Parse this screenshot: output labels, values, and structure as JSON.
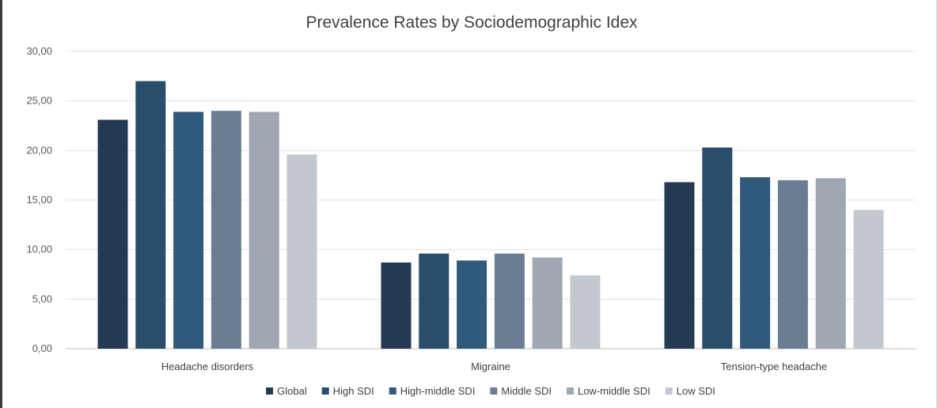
{
  "chart_data": {
    "type": "bar",
    "title": "Prevalence Rates by Sociodemographic Idex",
    "xlabel": "",
    "ylabel": "",
    "ylim": [
      0,
      30
    ],
    "yticks": [
      "0,00",
      "5,00",
      "10,00",
      "15,00",
      "20,00",
      "25,00",
      "30,00"
    ],
    "ytick_values": [
      0,
      5,
      10,
      15,
      20,
      25,
      30
    ],
    "grid": true,
    "legend_position": "bottom",
    "categories": [
      "Headache disorders",
      "Migraine",
      "Tension-type headache"
    ],
    "series": [
      {
        "name": "Global",
        "color": "#233a52",
        "values": [
          23.1,
          8.7,
          16.8
        ]
      },
      {
        "name": "High SDI",
        "color": "#2a4d6c",
        "values": [
          27.0,
          9.6,
          20.3
        ]
      },
      {
        "name": "High-middle SDI",
        "color": "#305a7c",
        "values": [
          23.9,
          8.9,
          17.3
        ]
      },
      {
        "name": "Middle SDI",
        "color": "#6b7d93",
        "values": [
          24.0,
          9.6,
          17.0
        ]
      },
      {
        "name": "Low-middle SDI",
        "color": "#9ea7b2",
        "values": [
          23.9,
          9.2,
          17.2
        ]
      },
      {
        "name": "Low SDI",
        "color": "#c3c8cf",
        "values": [
          19.6,
          7.4,
          14.0
        ]
      }
    ]
  }
}
